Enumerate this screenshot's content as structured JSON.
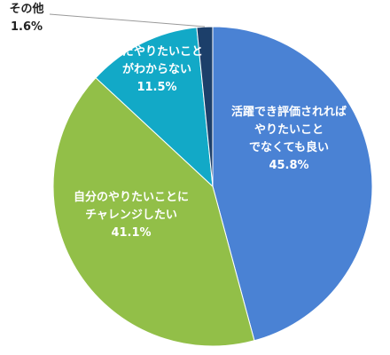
{
  "chart_data": {
    "type": "pie",
    "slices": [
      {
        "label_lines": [
          "活躍でき評価されれば",
          "やりたいこと",
          "でなくても良い"
        ],
        "value": 45.8,
        "value_text": "45.8%",
        "color": "#4a82d4"
      },
      {
        "label_lines": [
          "自分のやりたいことに",
          "チャレンジしたい"
        ],
        "value": 41.1,
        "value_text": "41.1%",
        "color": "#92bf48"
      },
      {
        "label_lines": [
          "まだやりたいこと",
          "がわからない"
        ],
        "value": 11.5,
        "value_text": "11.5%",
        "color": "#12a9c7"
      },
      {
        "label_lines": [
          "その他"
        ],
        "value": 1.6,
        "value_text": "1.6%",
        "color": "#1c3f6a"
      }
    ]
  }
}
